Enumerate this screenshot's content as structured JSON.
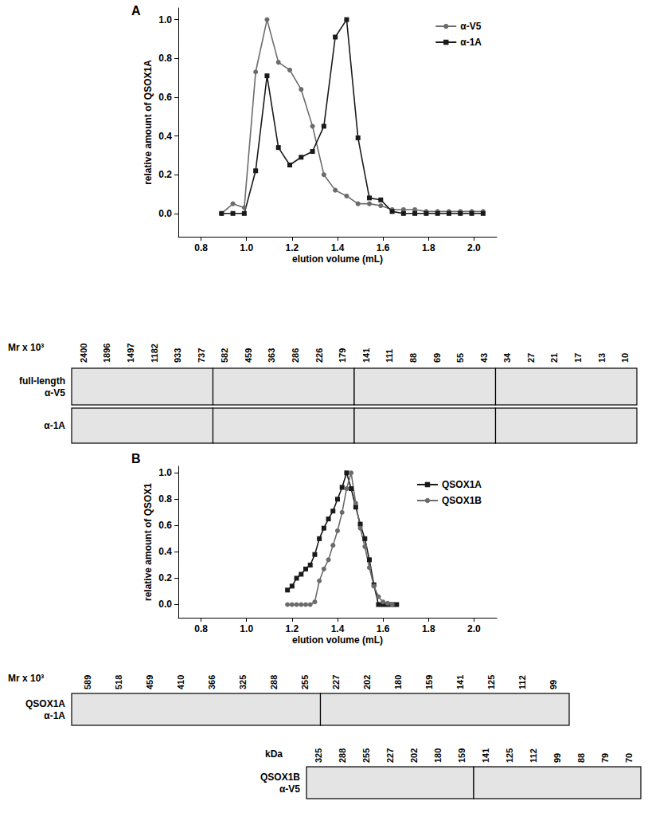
{
  "chart_data": [
    {
      "type": "line",
      "title": "A",
      "xlabel": "elution volume (mL)",
      "ylabel": "relative amount of QSOX1A",
      "x": [
        0.89,
        0.94,
        0.99,
        1.04,
        1.09,
        1.14,
        1.19,
        1.24,
        1.29,
        1.34,
        1.39,
        1.44,
        1.49,
        1.54,
        1.59,
        1.64,
        1.69,
        1.74,
        1.79,
        1.84,
        1.89,
        1.94,
        1.99,
        2.04
      ],
      "series": [
        {
          "name": "α-V5",
          "color": "#6b6b6b",
          "marker": "circle",
          "line_style": "solid",
          "values": [
            0,
            0.05,
            0.03,
            0.73,
            1.0,
            0.78,
            0.74,
            0.64,
            0.45,
            0.2,
            0.12,
            0.09,
            0.05,
            0.05,
            0.04,
            0.02,
            0.02,
            0.02,
            0.01,
            0.01,
            0.01,
            0.01,
            0.01,
            0.01
          ]
        },
        {
          "name": "α-1A",
          "color": "#1a1a1a",
          "marker": "square",
          "line_style": "solid",
          "values": [
            0,
            0,
            0,
            0.22,
            0.71,
            0.34,
            0.25,
            0.29,
            0.32,
            0.45,
            0.91,
            1.0,
            0.39,
            0.08,
            0.07,
            0.01,
            0,
            0,
            0,
            0,
            0,
            0,
            0,
            0
          ]
        }
      ],
      "xlim": [
        0.7,
        2.1
      ],
      "xticks": [
        {
          "value": 0.8,
          "label": "0.8"
        },
        {
          "value": 1.0,
          "label": "1.0"
        },
        {
          "value": 1.2,
          "label": "1.2"
        },
        {
          "value": 1.4,
          "label": "1.4"
        },
        {
          "value": 1.6,
          "label": "1.6"
        },
        {
          "value": 1.8,
          "label": "1.8"
        },
        {
          "value": 2.0,
          "label": "2.0"
        }
      ],
      "ylim": [
        -0.12,
        1.06
      ],
      "yticks": [
        {
          "value": 0,
          "label": "0.0"
        },
        {
          "value": 0.2,
          "label": "0.2"
        },
        {
          "value": 0.4,
          "label": "0.4"
        },
        {
          "value": 0.6,
          "label": "0.6"
        },
        {
          "value": 0.8,
          "label": "0.8"
        },
        {
          "value": 1.0,
          "label": "1.0"
        }
      ],
      "grid": false,
      "legend": "upper right"
    },
    {
      "type": "line",
      "title": "B",
      "xlabel": "elution volume (mL)",
      "ylabel": "relative amount of QSOX1",
      "x": [
        1.18,
        1.2,
        1.22,
        1.24,
        1.26,
        1.28,
        1.3,
        1.32,
        1.34,
        1.36,
        1.38,
        1.4,
        1.42,
        1.44,
        1.46,
        1.48,
        1.5,
        1.52,
        1.54,
        1.56,
        1.58,
        1.6,
        1.62,
        1.64,
        1.66
      ],
      "series": [
        {
          "name": "QSOX1A",
          "color": "#1a1a1a",
          "marker": "square",
          "line_style": "solid",
          "values": [
            0.11,
            0.14,
            0.2,
            0.23,
            0.27,
            0.3,
            0.38,
            0.5,
            0.58,
            0.65,
            0.71,
            0.8,
            0.89,
            1.0,
            0.88,
            0.74,
            0.61,
            0.5,
            0.34,
            0.15,
            0,
            0,
            0,
            0,
            0
          ]
        },
        {
          "name": "QSOX1B",
          "color": "#6b6b6b",
          "marker": "circle",
          "line_style": "solid",
          "values": [
            0,
            0,
            0,
            0,
            0,
            0,
            0.02,
            0.18,
            0.27,
            0.34,
            0.45,
            0.56,
            0.7,
            0.88,
            1.0,
            0.77,
            0.58,
            0.44,
            0.28,
            0.14,
            0.06,
            0.02,
            0.01,
            0,
            null
          ]
        }
      ],
      "xlim": [
        0.7,
        2.1
      ],
      "xticks": [
        {
          "value": 0.8,
          "label": "0.8"
        },
        {
          "value": 1.0,
          "label": "1.0"
        },
        {
          "value": 1.2,
          "label": "1.2"
        },
        {
          "value": 1.4,
          "label": "1.4"
        },
        {
          "value": 1.6,
          "label": "1.6"
        },
        {
          "value": 1.8,
          "label": "1.8"
        },
        {
          "value": 2.0,
          "label": "2.0"
        }
      ],
      "ylim": [
        -0.1,
        1.05
      ],
      "yticks": [
        {
          "value": 0,
          "label": "0.0"
        },
        {
          "value": 0.2,
          "label": "0.2"
        },
        {
          "value": 0.4,
          "label": "0.4"
        },
        {
          "value": 0.6,
          "label": "0.6"
        },
        {
          "value": 0.8,
          "label": "0.8"
        },
        {
          "value": 1.0,
          "label": "1.0"
        }
      ],
      "grid": false,
      "legend": "upper right"
    }
  ],
  "blots": [
    {
      "heading": "Mr x 10³",
      "boxes": [
        [
          2400,
          1896,
          1497,
          1182,
          933,
          737
        ],
        [
          582,
          459,
          363,
          286,
          226,
          179
        ],
        [
          141,
          111,
          88,
          69,
          55,
          43
        ],
        [
          34,
          27,
          21,
          17,
          13,
          10
        ]
      ],
      "rows": [
        [
          "full-length",
          "α-V5"
        ],
        [
          "α-1A"
        ]
      ]
    },
    {
      "heading": "Mr x 10³",
      "boxes": [
        [
          589,
          518,
          459,
          410,
          366,
          325,
          288,
          255
        ],
        [
          227,
          202,
          180,
          159,
          141,
          125,
          112,
          99
        ]
      ],
      "rows": [
        [
          "QSOX1A",
          "α-1A"
        ]
      ]
    },
    {
      "heading": "kDa",
      "boxes": [
        [
          325,
          288,
          255,
          227,
          202,
          180,
          159
        ],
        [
          141,
          125,
          112,
          99,
          88,
          79,
          70
        ]
      ],
      "rows": [
        [
          "QSOX1B",
          "α-V5"
        ]
      ]
    }
  ]
}
